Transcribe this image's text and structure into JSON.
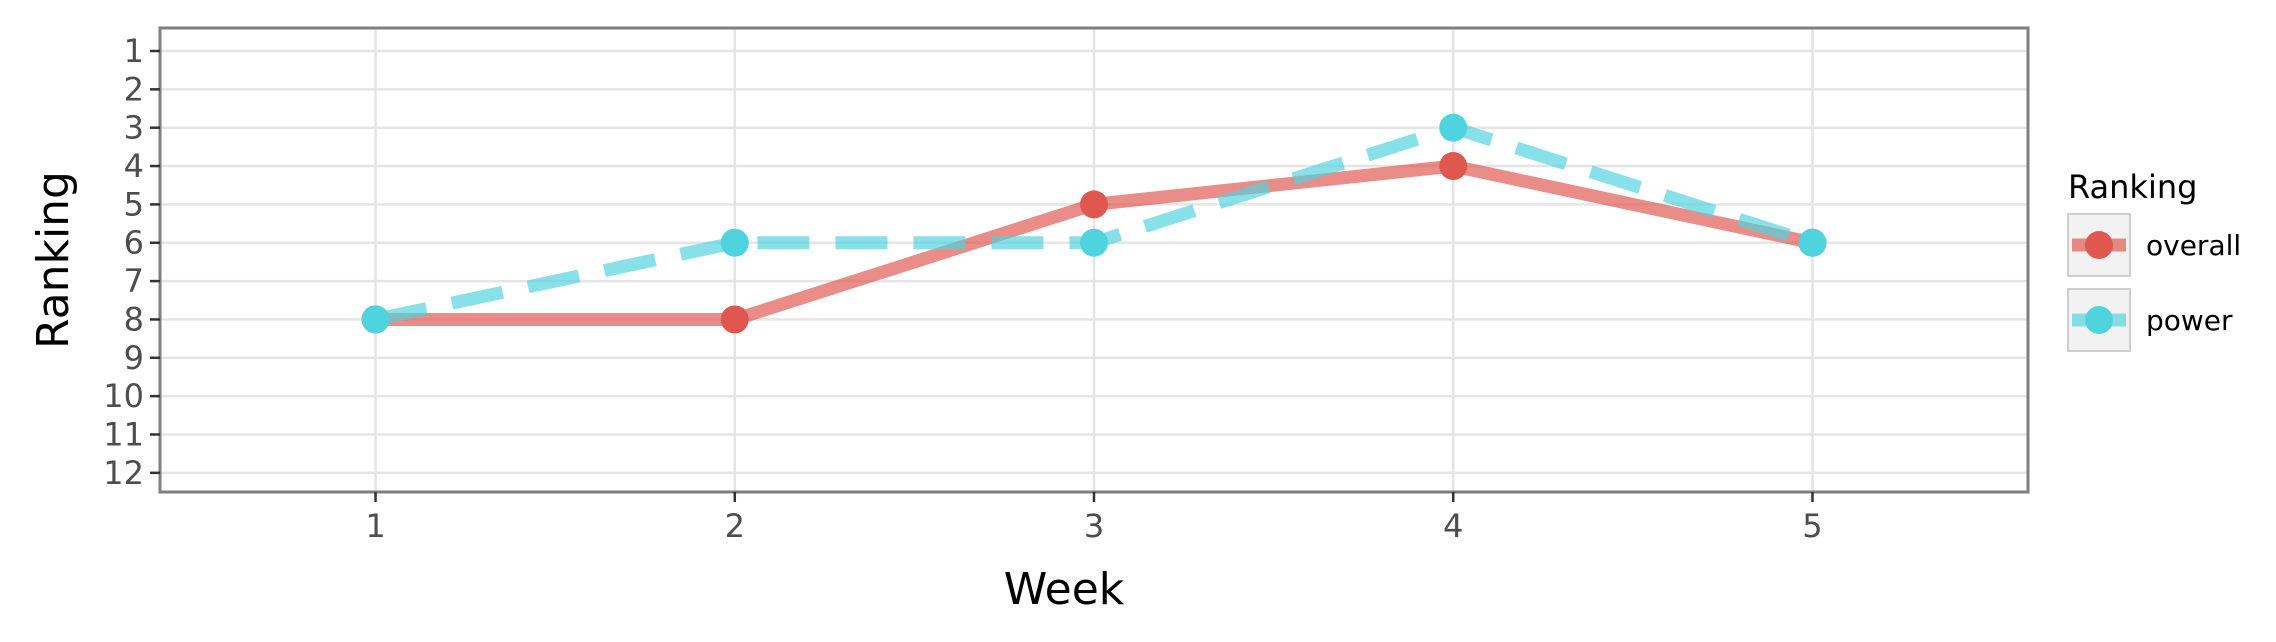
{
  "chart_data": {
    "type": "line",
    "xlabel": "Week",
    "ylabel": "Ranking",
    "x": [
      1,
      2,
      3,
      4,
      5
    ],
    "x_ticks": [
      "1",
      "2",
      "3",
      "4",
      "5"
    ],
    "xlim": [
      0.4,
      5.6
    ],
    "y_ticks": [
      "1",
      "2",
      "3",
      "4",
      "5",
      "6",
      "7",
      "8",
      "9",
      "10",
      "11",
      "12"
    ],
    "ylim": [
      12.5,
      0.4
    ],
    "y_reversed": true,
    "grid": true,
    "legend": {
      "title": "Ranking",
      "placement": "right"
    },
    "series": [
      {
        "name": "overall",
        "values": [
          8,
          8,
          5,
          4,
          6
        ],
        "color": "#e0574f",
        "line_style": "solid"
      },
      {
        "name": "power",
        "values": [
          8,
          6,
          6,
          3,
          6
        ],
        "color": "#4fd3df",
        "line_style": "dashed"
      }
    ]
  }
}
